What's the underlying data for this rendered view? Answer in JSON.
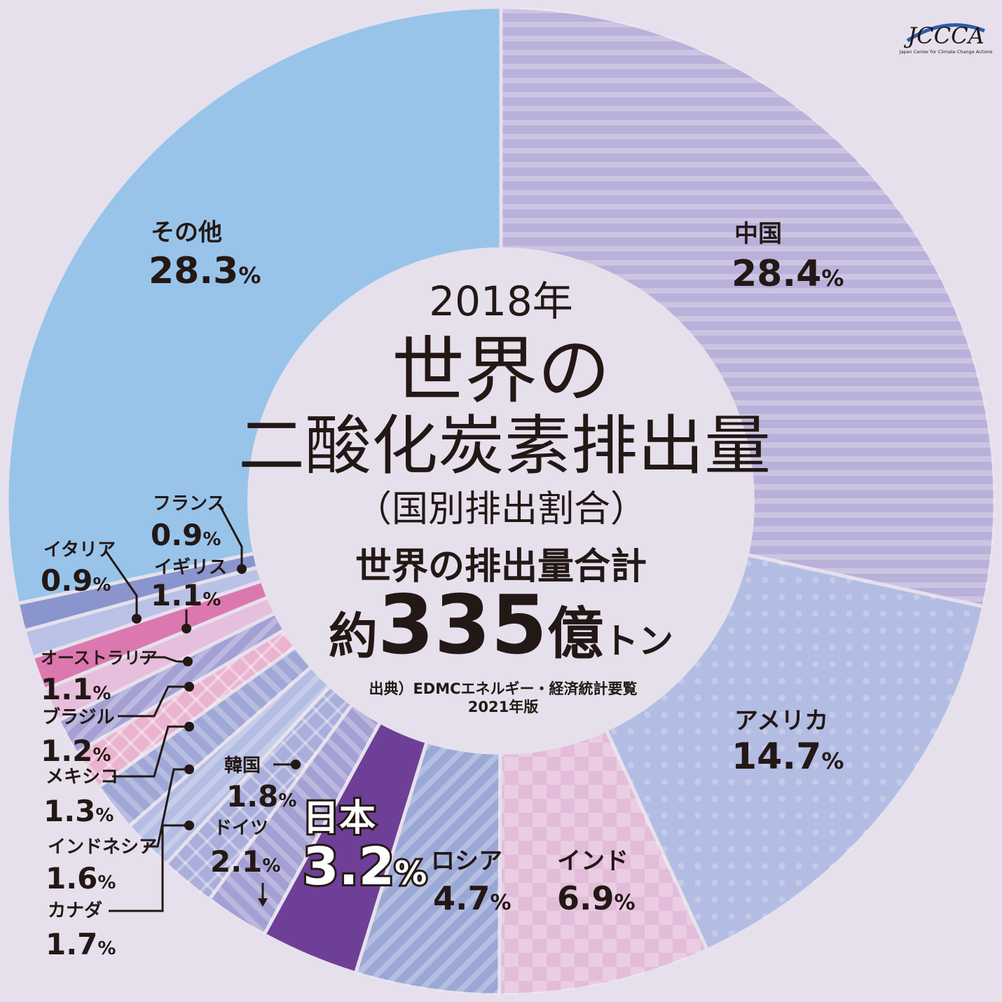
{
  "chart_data": {
    "type": "donut",
    "categories": [
      "中国",
      "アメリカ",
      "インド",
      "ロシア",
      "日本",
      "ドイツ",
      "韓国",
      "カナダ",
      "インドネシア",
      "メキシコ",
      "ブラジル",
      "オーストラリア",
      "イギリス",
      "イタリア",
      "フランス",
      "その他"
    ],
    "values": [
      28.4,
      14.7,
      6.9,
      4.7,
      3.2,
      2.1,
      1.8,
      1.7,
      1.6,
      1.3,
      1.2,
      1.1,
      1.1,
      0.9,
      0.9,
      28.3
    ],
    "value_labels": [
      "28.4",
      "14.7",
      "6.9",
      "4.7",
      "3.2",
      "2.1",
      "1.8",
      "1.7",
      "1.6",
      "1.3",
      "1.2",
      "1.1",
      "1.1",
      "0.9",
      "0.9",
      "28.3"
    ],
    "unit": "%",
    "colors": [
      "#b9b1da",
      "#b3bde3",
      "#e3bcd9",
      "#9ba8d6",
      "#6e3f96",
      "#a4a0d4",
      "#a9aedb",
      "#b4bde3",
      "#9ea7d6",
      "#eab3d0",
      "#a5a0d4",
      "#e6bfdc",
      "#dc78b0",
      "#b9c2e6",
      "#8995cc",
      "#98c4ea",
      "#c79ac6"
    ],
    "title": "2018年 世界の二酸化炭素排出量（国別排出割合）"
  },
  "center": {
    "year": "2018年",
    "title_line1": "世界の",
    "title_line2": "二酸化炭素排出量",
    "subtitle": "（国別排出割合）",
    "total_label": "世界の排出量合計",
    "total_prefix": "約",
    "total_number": "335",
    "total_unit_big": "億",
    "total_unit_small": "トン",
    "source_line1": "出典）EDMCエネルギー・経済統計要覧",
    "source_line2": "2021年版"
  },
  "logo": {
    "text": "JCCCA",
    "subtext": "Japan Center for Climate Change Actions"
  }
}
